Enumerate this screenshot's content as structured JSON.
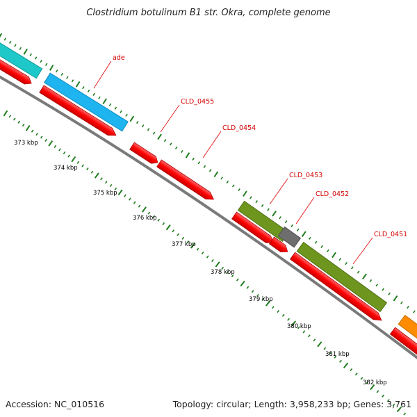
{
  "title": "Clostridium botulinum B1 str. Okra, complete genome",
  "footer": {
    "accession": "Accession: NC_010516",
    "summary": "Topology: circular; Length: 3,958,233 bp; Genes: 3,761"
  },
  "scale_labels": [
    "373 kbp",
    "374 kbp",
    "375 kbp",
    "376 kbp",
    "377 kbp",
    "378 kbp",
    "379 kbp",
    "380 kbp",
    "381 kbp",
    "382 kbp"
  ],
  "gene_labels": [
    "ade",
    "CLD_0455",
    "CLD_0454",
    "CLD_0453",
    "CLD_0452",
    "CLD_0451"
  ],
  "colors": {
    "backbone": "#7f7f7f",
    "cds": "#ff0000",
    "feature_cyan": "#1ec8c8",
    "feature_blue": "#1eb4f0",
    "feature_olive": "#6e961e",
    "feature_gray": "#6e6e6e",
    "feature_orange": "#ff8c00",
    "tick": "#1e7d1e",
    "label": "#d40000"
  }
}
